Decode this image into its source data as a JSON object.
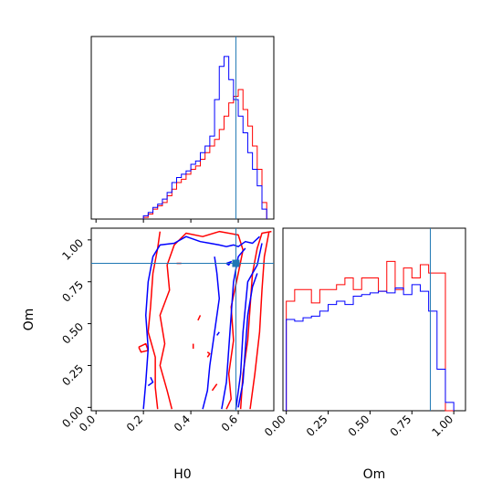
{
  "chart_data": [
    {
      "type": "histogram",
      "parameter": "H0",
      "xlim": [
        -0.02,
        0.75
      ],
      "ylim": [
        0,
        1.1
      ],
      "truth": 0.59,
      "colors": {
        "series_a": "#ff0000",
        "series_b": "#0000ff",
        "truth": "#1f77b4"
      },
      "bin_edges": [
        0.2,
        0.22,
        0.24,
        0.26,
        0.28,
        0.3,
        0.32,
        0.34,
        0.36,
        0.38,
        0.4,
        0.42,
        0.44,
        0.46,
        0.48,
        0.5,
        0.52,
        0.54,
        0.56,
        0.58,
        0.6,
        0.62,
        0.64,
        0.66,
        0.68,
        0.7,
        0.72
      ],
      "series": [
        {
          "values": [
            0.01,
            0.03,
            0.06,
            0.08,
            0.1,
            0.14,
            0.18,
            0.22,
            0.24,
            0.27,
            0.3,
            0.32,
            0.36,
            0.4,
            0.44,
            0.48,
            0.54,
            0.62,
            0.7,
            0.74,
            0.78,
            0.66,
            0.56,
            0.44,
            0.3,
            0.1
          ]
        },
        {
          "values": [
            0.02,
            0.04,
            0.07,
            0.09,
            0.12,
            0.16,
            0.22,
            0.25,
            0.27,
            0.29,
            0.33,
            0.35,
            0.4,
            0.44,
            0.5,
            0.72,
            0.92,
            0.98,
            0.84,
            0.72,
            0.62,
            0.52,
            0.4,
            0.3,
            0.2,
            0.06
          ]
        }
      ],
      "xticks": [
        0.0,
        0.2,
        0.4,
        0.6
      ]
    },
    {
      "type": "contour",
      "xlabel": "H0",
      "ylabel": "Om",
      "xlim": [
        -0.02,
        0.75
      ],
      "ylim": [
        -0.02,
        1.07
      ],
      "truth": {
        "x": 0.59,
        "y": 0.86
      },
      "xticks": [
        0.0,
        0.2,
        0.4,
        0.6
      ],
      "xtick_labels": [
        "0.0",
        "0.2",
        "0.4",
        "0.6"
      ],
      "yticks": [
        0.0,
        0.25,
        0.5,
        0.75,
        1.0
      ],
      "ytick_labels": [
        "0.00",
        "0.25",
        "0.50",
        "0.75",
        "1.00"
      ],
      "colors": {
        "series_a": "#ff0000",
        "series_b": "#0000ff",
        "truth": "#1f77b4"
      },
      "series": [
        {
          "contours": [
            [
              [
                0.26,
                -0.01
              ],
              [
                0.25,
                0.12
              ],
              [
                0.25,
                0.3
              ],
              [
                0.22,
                0.45
              ],
              [
                0.23,
                0.6
              ],
              [
                0.24,
                0.8
              ],
              [
                0.26,
                0.95
              ],
              [
                0.27,
                1.05
              ]
            ],
            [
              [
                0.32,
                -0.01
              ],
              [
                0.3,
                0.1
              ],
              [
                0.27,
                0.25
              ],
              [
                0.29,
                0.38
              ],
              [
                0.27,
                0.55
              ],
              [
                0.31,
                0.7
              ],
              [
                0.3,
                0.85
              ],
              [
                0.33,
                0.97
              ],
              [
                0.38,
                1.04
              ],
              [
                0.45,
                1.02
              ],
              [
                0.52,
                1.05
              ],
              [
                0.6,
                1.03
              ],
              [
                0.62,
                0.94
              ],
              [
                0.6,
                0.8
              ],
              [
                0.57,
                0.6
              ],
              [
                0.58,
                0.4
              ],
              [
                0.56,
                0.2
              ],
              [
                0.57,
                0.05
              ],
              [
                0.55,
                -0.01
              ]
            ],
            [
              [
                0.61,
                -0.01
              ],
              [
                0.62,
                0.2
              ],
              [
                0.64,
                0.4
              ],
              [
                0.65,
                0.6
              ],
              [
                0.66,
                0.8
              ],
              [
                0.68,
                0.95
              ],
              [
                0.7,
                1.04
              ],
              [
                0.74,
                1.05
              ]
            ],
            [
              [
                0.65,
                -0.01
              ],
              [
                0.67,
                0.2
              ],
              [
                0.69,
                0.45
              ],
              [
                0.7,
                0.7
              ],
              [
                0.71,
                0.9
              ],
              [
                0.73,
                1.05
              ]
            ],
            [
              [
                0.18,
                0.36
              ],
              [
                0.21,
                0.38
              ],
              [
                0.22,
                0.34
              ],
              [
                0.19,
                0.33
              ],
              [
                0.18,
                0.36
              ]
            ],
            [
              [
                0.47,
                0.3
              ],
              [
                0.48,
                0.32
              ],
              [
                0.47,
                0.33
              ]
            ],
            [
              [
                0.49,
                0.1
              ],
              [
                0.5,
                0.12
              ],
              [
                0.51,
                0.14
              ]
            ],
            [
              [
                0.43,
                0.52
              ],
              [
                0.44,
                0.55
              ]
            ],
            [
              [
                0.41,
                0.35
              ],
              [
                0.41,
                0.38
              ]
            ],
            [
              [
                0.34,
                0.86
              ],
              [
                0.36,
                0.86
              ]
            ]
          ]
        },
        {
          "contours": [
            [
              [
                0.2,
                -0.01
              ],
              [
                0.21,
                0.15
              ],
              [
                0.22,
                0.35
              ],
              [
                0.21,
                0.55
              ],
              [
                0.22,
                0.75
              ],
              [
                0.24,
                0.9
              ],
              [
                0.27,
                0.97
              ],
              [
                0.33,
                0.98
              ],
              [
                0.38,
                1.02
              ],
              [
                0.44,
                0.99
              ],
              [
                0.48,
                0.98
              ],
              [
                0.52,
                0.97
              ],
              [
                0.55,
                0.96
              ],
              [
                0.58,
                0.97
              ],
              [
                0.6,
                0.96
              ],
              [
                0.63,
                0.99
              ],
              [
                0.66,
                0.98
              ],
              [
                0.69,
                1.02
              ]
            ],
            [
              [
                0.45,
                -0.01
              ],
              [
                0.47,
                0.1
              ],
              [
                0.48,
                0.25
              ],
              [
                0.5,
                0.45
              ],
              [
                0.52,
                0.65
              ],
              [
                0.51,
                0.8
              ],
              [
                0.5,
                0.9
              ]
            ],
            [
              [
                0.53,
                -0.01
              ],
              [
                0.55,
                0.15
              ],
              [
                0.56,
                0.35
              ],
              [
                0.57,
                0.55
              ],
              [
                0.58,
                0.75
              ],
              [
                0.6,
                0.9
              ],
              [
                0.63,
                0.95
              ]
            ],
            [
              [
                0.59,
                -0.01
              ],
              [
                0.61,
                0.2
              ],
              [
                0.62,
                0.45
              ],
              [
                0.63,
                0.6
              ],
              [
                0.64,
                0.75
              ],
              [
                0.68,
                0.85
              ],
              [
                0.7,
                0.98
              ]
            ],
            [
              [
                0.6,
                0.0
              ],
              [
                0.62,
                0.15
              ],
              [
                0.63,
                0.35
              ],
              [
                0.64,
                0.55
              ],
              [
                0.66,
                0.72
              ],
              [
                0.68,
                0.8
              ]
            ],
            [
              [
                0.22,
                0.13
              ],
              [
                0.24,
                0.15
              ],
              [
                0.23,
                0.18
              ]
            ],
            [
              [
                0.51,
                0.43
              ],
              [
                0.52,
                0.45
              ]
            ],
            [
              [
                0.55,
                0.86
              ],
              [
                0.57,
                0.87
              ],
              [
                0.56,
                0.85
              ],
              [
                0.55,
                0.86
              ]
            ]
          ]
        }
      ]
    },
    {
      "type": "histogram",
      "xlabel": "Om",
      "parameter": "Om",
      "xlim": [
        -0.02,
        1.07
      ],
      "ylim": [
        0,
        1.1
      ],
      "truth": 0.86,
      "xticks": [
        0.0,
        0.25,
        0.5,
        0.75,
        1.0
      ],
      "xtick_labels": [
        "0.00",
        "0.25",
        "0.50",
        "0.75",
        "1.00"
      ],
      "colors": {
        "series_a": "#ff0000",
        "series_b": "#0000ff",
        "truth": "#1f77b4"
      },
      "bin_edges": [
        0.0,
        0.05,
        0.1,
        0.15,
        0.2,
        0.25,
        0.3,
        0.35,
        0.4,
        0.45,
        0.5,
        0.55,
        0.6,
        0.65,
        0.7,
        0.75,
        0.8,
        0.85,
        0.9,
        0.95,
        1.0
      ],
      "series": [
        {
          "values": [
            0.66,
            0.73,
            0.73,
            0.65,
            0.73,
            0.73,
            0.76,
            0.8,
            0.73,
            0.8,
            0.8,
            0.72,
            0.9,
            0.73,
            0.86,
            0.8,
            0.88,
            0.83,
            0.83,
            0.0
          ]
        },
        {
          "values": [
            0.55,
            0.54,
            0.56,
            0.57,
            0.6,
            0.64,
            0.66,
            0.64,
            0.69,
            0.7,
            0.71,
            0.72,
            0.71,
            0.74,
            0.7,
            0.76,
            0.72,
            0.6,
            0.25,
            0.05
          ]
        }
      ]
    }
  ]
}
